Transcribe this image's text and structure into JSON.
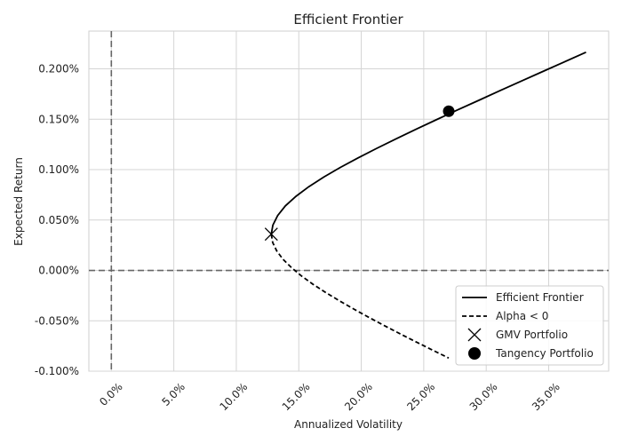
{
  "chart_data": {
    "type": "line",
    "title": "Efficient Frontier",
    "xlabel": "Annualized Volatility",
    "ylabel": "Expected Return",
    "xlim": [
      -1.8,
      39.8
    ],
    "ylim": [
      -0.1,
      0.2375
    ],
    "grid": true,
    "legend_position": "lower-right",
    "xticks": [
      0,
      5,
      10,
      15,
      20,
      25,
      30,
      35
    ],
    "xtick_labels": [
      "0.0%",
      "5.0%",
      "10.0%",
      "15.0%",
      "20.0%",
      "25.0%",
      "30.0%",
      "35.0%"
    ],
    "yticks": [
      -0.1,
      -0.05,
      0.0,
      0.05,
      0.1,
      0.15,
      0.2
    ],
    "ytick_labels": [
      "-0.100%",
      "-0.050%",
      "0.000%",
      "0.050%",
      "0.100%",
      "0.150%",
      "0.200%"
    ],
    "reference_lines": {
      "vertical_x": 0,
      "horizontal_y": 0
    },
    "series": [
      {
        "name": "Efficient Frontier",
        "style": "solid",
        "x": [
          12.8,
          12.93,
          13.31,
          13.93,
          14.78,
          15.81,
          17.0,
          18.33,
          19.75,
          21.25,
          22.81,
          24.42,
          26.06,
          27.72,
          29.4,
          31.1,
          32.81,
          34.53,
          36.26,
          37.99
        ],
        "y": [
          0.036,
          0.045,
          0.0545,
          0.0641,
          0.0736,
          0.0831,
          0.0926,
          0.1022,
          0.1117,
          0.1212,
          0.1307,
          0.1403,
          0.1498,
          0.1593,
          0.1688,
          0.1784,
          0.1879,
          0.1974,
          0.2069,
          0.2165
        ]
      },
      {
        "name": "Alpha < 0",
        "style": "dashed",
        "x": [
          12.8,
          12.91,
          13.23,
          13.73,
          14.41,
          15.22,
          16.15,
          17.18,
          18.28,
          19.45,
          20.67,
          21.93,
          23.22,
          24.54,
          25.88,
          27.0
        ],
        "y": [
          0.036,
          0.0277,
          0.0194,
          0.0111,
          0.0028,
          -0.0055,
          -0.0138,
          -0.0221,
          -0.0304,
          -0.0387,
          -0.047,
          -0.0553,
          -0.0636,
          -0.0719,
          -0.0802,
          -0.087
        ]
      }
    ],
    "markers": [
      {
        "name": "GMV Portfolio",
        "shape": "x",
        "x": 12.8,
        "y": 0.036
      },
      {
        "name": "Tangency Portfolio",
        "shape": "circle",
        "x": 27.0,
        "y": 0.158
      }
    ],
    "colors": {
      "line": "#000000",
      "grid": "#d4d4d4",
      "reference": "#666666",
      "background": "#ffffff"
    }
  }
}
